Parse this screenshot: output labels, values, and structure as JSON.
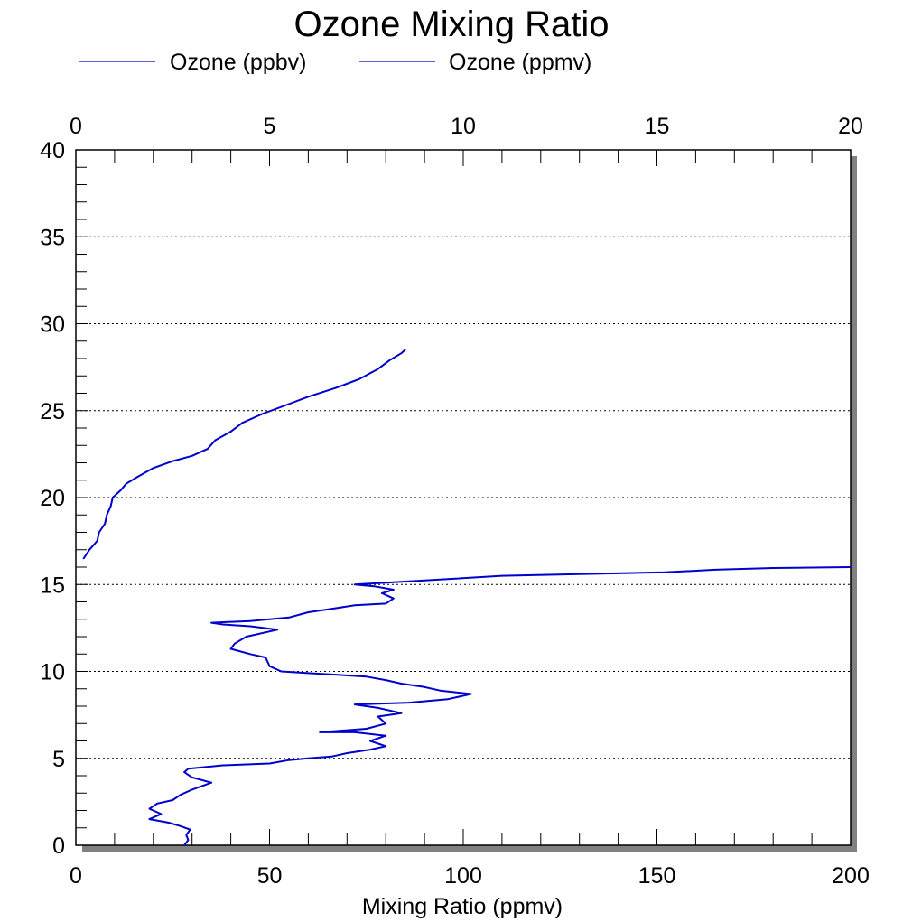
{
  "chart_data": {
    "type": "line",
    "title": "Ozone Mixing Ratio",
    "xlabel": "Mixing Ratio (ppmv)",
    "ylabel": "",
    "x_bottom": {
      "range": [
        0,
        200
      ],
      "ticks": [
        0,
        50,
        100,
        150,
        200
      ],
      "tick_labels": [
        "0",
        "50",
        "100",
        "150",
        "200"
      ]
    },
    "x_top": {
      "range": [
        0,
        20
      ],
      "ticks": [
        0,
        5,
        10,
        15,
        20
      ],
      "tick_labels": [
        "0",
        "5",
        "10",
        "15",
        "20"
      ]
    },
    "y_axis": {
      "range": [
        0,
        40
      ],
      "ticks": [
        0,
        5,
        10,
        15,
        20,
        25,
        30,
        35,
        40
      ],
      "tick_labels": [
        "0",
        "5",
        "10",
        "15",
        "20",
        "25",
        "30",
        "35",
        "40"
      ]
    },
    "grid": {
      "horizontal": true,
      "style": "dotted"
    },
    "legend": {
      "placement": "top-left",
      "entries": [
        "Ozone (ppbv)",
        "Ozone (ppmv)"
      ]
    },
    "colors": {
      "series": "#0000cc",
      "frame_shadow": "#808080"
    },
    "series": [
      {
        "name": "Ozone (ppbv)",
        "axis": "bottom",
        "points": [
          [
            28,
            0.0
          ],
          [
            29,
            0.3
          ],
          [
            28.5,
            0.6
          ],
          [
            29.5,
            0.9
          ],
          [
            27,
            1.1
          ],
          [
            24,
            1.3
          ],
          [
            19,
            1.5
          ],
          [
            22,
            1.8
          ],
          [
            19,
            2.1
          ],
          [
            21,
            2.4
          ],
          [
            25,
            2.6
          ],
          [
            27,
            2.9
          ],
          [
            30,
            3.2
          ],
          [
            35,
            3.6
          ],
          [
            30,
            3.9
          ],
          [
            28,
            4.2
          ],
          [
            29,
            4.4
          ],
          [
            38,
            4.6
          ],
          [
            50,
            4.7
          ],
          [
            55,
            4.9
          ],
          [
            60,
            5.0
          ],
          [
            66,
            5.1
          ],
          [
            70,
            5.3
          ],
          [
            76,
            5.5
          ],
          [
            80,
            5.7
          ],
          [
            76,
            6.0
          ],
          [
            80,
            6.3
          ],
          [
            72,
            6.5
          ],
          [
            63,
            6.5
          ],
          [
            75,
            6.7
          ],
          [
            80,
            7.0
          ],
          [
            78,
            7.4
          ],
          [
            84,
            7.6
          ],
          [
            78,
            7.9
          ],
          [
            72,
            8.1
          ],
          [
            86,
            8.2
          ],
          [
            96,
            8.4
          ],
          [
            102,
            8.7
          ],
          [
            94,
            8.9
          ],
          [
            90,
            9.1
          ],
          [
            84,
            9.3
          ],
          [
            80,
            9.5
          ],
          [
            75,
            9.7
          ],
          [
            68,
            9.8
          ],
          [
            60,
            9.9
          ],
          [
            53,
            10.0
          ],
          [
            50,
            10.3
          ],
          [
            49,
            10.8
          ],
          [
            45,
            11.0
          ],
          [
            40,
            11.3
          ],
          [
            41,
            11.6
          ],
          [
            44,
            12.0
          ],
          [
            52,
            12.4
          ],
          [
            45,
            12.6
          ],
          [
            38,
            12.7
          ],
          [
            35,
            12.8
          ],
          [
            45,
            12.9
          ],
          [
            55,
            13.1
          ],
          [
            60,
            13.4
          ],
          [
            66,
            13.6
          ],
          [
            72,
            13.8
          ],
          [
            80,
            13.9
          ],
          [
            82,
            14.2
          ],
          [
            79,
            14.5
          ],
          [
            82,
            14.7
          ],
          [
            77,
            14.9
          ],
          [
            72,
            15.0
          ],
          [
            80,
            15.1
          ],
          [
            95,
            15.3
          ],
          [
            110,
            15.5
          ],
          [
            130,
            15.6
          ],
          [
            152,
            15.7
          ],
          [
            165,
            15.85
          ],
          [
            180,
            15.95
          ],
          [
            200,
            16.0
          ]
        ]
      },
      {
        "name": "Ozone (ppmv)",
        "axis": "top",
        "points": [
          [
            0.2,
            16.5
          ],
          [
            0.35,
            17.0
          ],
          [
            0.55,
            17.5
          ],
          [
            0.6,
            18.0
          ],
          [
            0.75,
            18.5
          ],
          [
            0.8,
            19.0
          ],
          [
            0.9,
            19.5
          ],
          [
            0.95,
            20.0
          ],
          [
            1.15,
            20.4
          ],
          [
            1.3,
            20.8
          ],
          [
            1.6,
            21.2
          ],
          [
            2.0,
            21.7
          ],
          [
            2.5,
            22.1
          ],
          [
            3.0,
            22.4
          ],
          [
            3.4,
            22.8
          ],
          [
            3.6,
            23.3
          ],
          [
            4.0,
            23.8
          ],
          [
            4.3,
            24.3
          ],
          [
            4.8,
            24.8
          ],
          [
            5.4,
            25.3
          ],
          [
            6.0,
            25.8
          ],
          [
            6.7,
            26.3
          ],
          [
            7.3,
            26.8
          ],
          [
            7.8,
            27.4
          ],
          [
            8.1,
            27.9
          ],
          [
            8.4,
            28.3
          ],
          [
            8.5,
            28.5
          ]
        ]
      }
    ]
  }
}
